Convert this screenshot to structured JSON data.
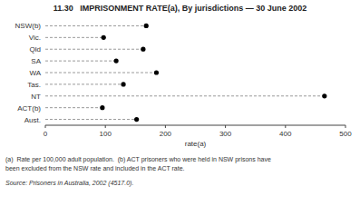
{
  "chart_data": {
    "type": "dot",
    "orientation": "horizontal",
    "title": "11.30   IMPRISONMENT RATE(a), By jurisdictions — 30 June 2002",
    "categories": [
      "NSW(b)",
      "Vic.",
      "Qld",
      "SA",
      "WA",
      "Tas.",
      "NT",
      "ACT(b)",
      "Aust."
    ],
    "values": [
      168,
      97,
      163,
      118,
      185,
      130,
      465,
      95,
      152
    ],
    "color": "#000000",
    "marker": "circle",
    "line_style": "dashed",
    "xlabel": "rate(a)",
    "xlim": [
      0,
      500
    ],
    "xticks": [
      0,
      100,
      200,
      300,
      400,
      500
    ],
    "grid": false,
    "footnotes": [
      "(a)  Rate per 100,000 adult population.  (b) ACT prisoners who were held in NSW prisons have",
      "been excluded from the NSW rate and included in the ACT rate."
    ],
    "source": "Source: Prisoners in Australia, 2002 (4517.0)."
  }
}
